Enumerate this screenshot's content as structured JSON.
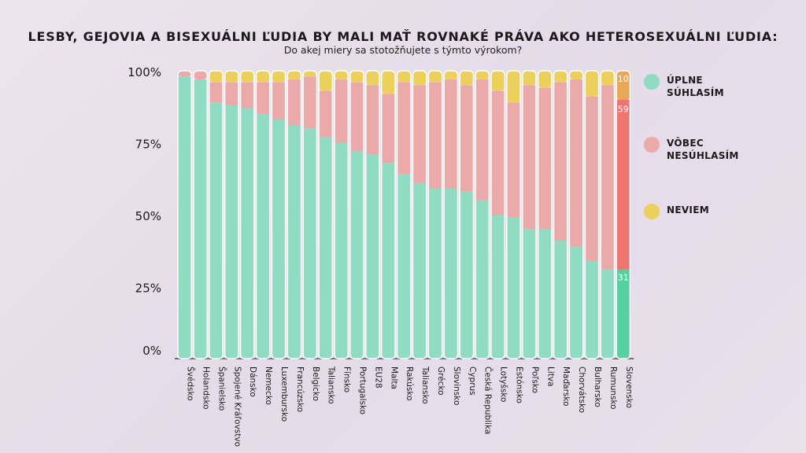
{
  "title": "LESBY, GEJOVIA A BISEXUÁLNI ĽUDIA BY MALI MAŤ ROVNAKÉ PRÁVA AKO HETEROSEXUÁLNI ĽUDIA:",
  "subtitle": "Do akej miery sa stotožňujete s týmto výrokom?",
  "chart_data": {
    "type": "bar",
    "stacked": true,
    "categories": [
      "Švédsko",
      "Holandsko",
      "Španielsko",
      "Spojené Kráľovstvo",
      "Dánsko",
      "Nemecko",
      "Luxembursko",
      "Francúzsko",
      "Belgicko",
      "Taliansko",
      "Fínsko",
      "Portugalsko",
      "EU28",
      "Malta",
      "Rakúsko",
      "Taliansko",
      "Grécko",
      "Slovinsko",
      "Cyprus",
      "Česká Republika",
      "Lotyšsko",
      "Estónsko",
      "Poľsko",
      "Litva",
      "Maďarsko",
      "Chorvátsko",
      "Bulharsko",
      "Rumunsko",
      "Slovensko"
    ],
    "series": [
      {
        "name": "ÚPLNE SÚHLASÍM",
        "color": "#8fdcc2",
        "highlight_color": "#56d09e",
        "values": [
          98,
          97,
          89,
          88,
          87,
          85,
          83,
          81,
          80,
          77,
          75,
          72,
          71,
          68,
          64,
          61,
          59,
          59,
          58,
          55,
          50,
          49,
          45,
          45,
          41,
          39,
          34,
          31,
          31
        ]
      },
      {
        "name": "VÔBEC NESÚHLASÍM",
        "color": "#ebaaaa",
        "highlight_color": "#ef7572",
        "values": [
          2,
          3,
          7,
          8,
          9,
          11,
          13,
          16,
          18,
          16,
          22,
          24,
          24,
          24,
          32,
          34,
          37,
          38,
          37,
          42,
          43,
          40,
          50,
          49,
          55,
          58,
          57,
          64,
          59
        ]
      },
      {
        "name": "NEVIEM",
        "color": "#ebd15c",
        "highlight_color": "#e8a855",
        "values": [
          0,
          0,
          4,
          4,
          4,
          4,
          4,
          3,
          2,
          7,
          3,
          4,
          5,
          8,
          4,
          5,
          4,
          3,
          5,
          3,
          7,
          11,
          5,
          6,
          4,
          3,
          9,
          5,
          10
        ]
      }
    ],
    "highlight_index": 28,
    "data_labels": [
      "10",
      "59",
      "31"
    ],
    "yticks": [
      "0%",
      "25%",
      "50%",
      "75%",
      "100%"
    ],
    "ylim": [
      0,
      100
    ],
    "legend_position": "right"
  }
}
